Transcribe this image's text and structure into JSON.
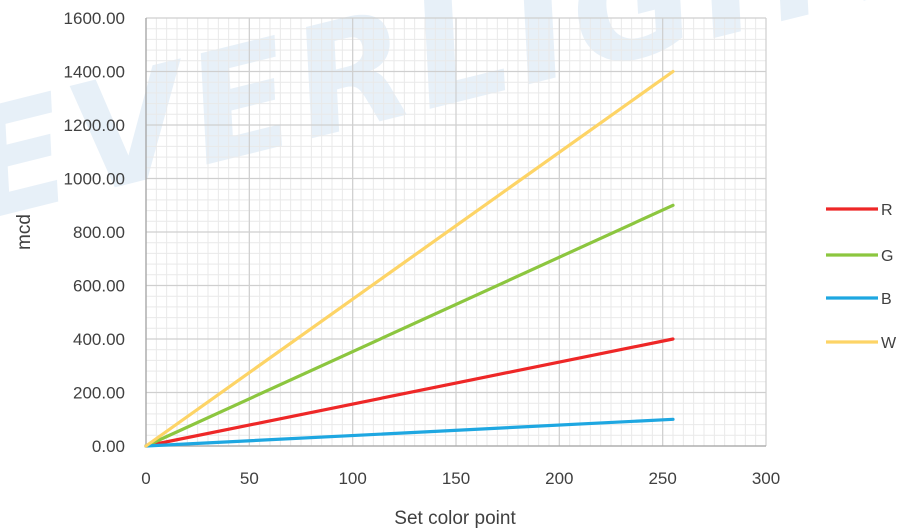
{
  "watermark": "EVERLIGHT",
  "chart_data": {
    "type": "line",
    "title": "",
    "xlabel": "Set color point",
    "ylabel": "mcd",
    "xlim": [
      0,
      300
    ],
    "ylim": [
      0,
      1600
    ],
    "xticks": [
      0,
      50,
      100,
      150,
      200,
      250,
      300
    ],
    "xtick_labels": [
      "0",
      "50",
      "100",
      "150",
      "200",
      "250",
      "300"
    ],
    "yticks": [
      0,
      200,
      400,
      600,
      800,
      1000,
      1200,
      1400,
      1600
    ],
    "ytick_labels": [
      "0.00",
      "200.00",
      "400.00",
      "600.00",
      "800.00",
      "1000.00",
      "1200.00",
      "1400.00",
      "1600.00"
    ],
    "grid": true,
    "legend_position": "right",
    "series": [
      {
        "name": "R",
        "color": "#ee2727",
        "x": [
          0,
          255
        ],
        "y": [
          0,
          400
        ]
      },
      {
        "name": "G",
        "color": "#8cc63f",
        "x": [
          0,
          255
        ],
        "y": [
          0,
          900
        ]
      },
      {
        "name": "B",
        "color": "#1ea7e1",
        "x": [
          0,
          255
        ],
        "y": [
          0,
          100
        ]
      },
      {
        "name": "W",
        "color": "#fdd466",
        "x": [
          0,
          255
        ],
        "y": [
          0,
          1400
        ]
      }
    ]
  }
}
